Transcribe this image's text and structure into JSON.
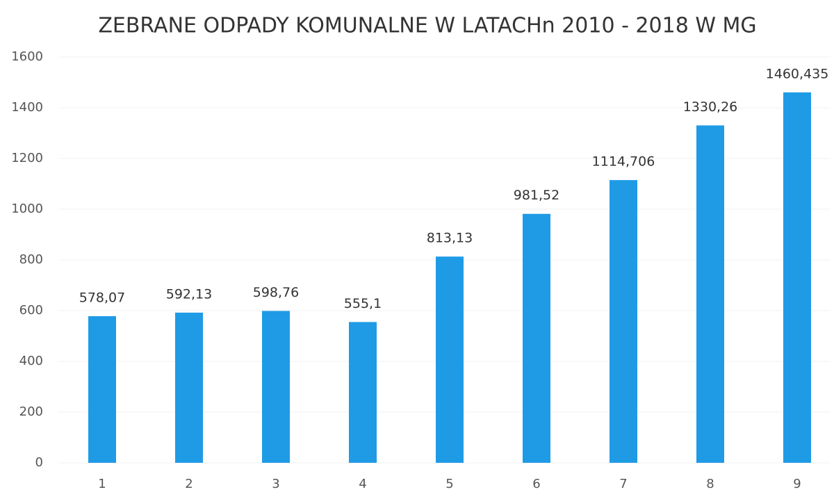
{
  "chart_data": {
    "type": "bar",
    "title": "ZEBRANE ODPADY KOMUNALNE W LATACHn 2010 - 2018 W MG",
    "categories": [
      "1",
      "2",
      "3",
      "4",
      "5",
      "6",
      "7",
      "8",
      "9"
    ],
    "values": [
      578.07,
      592.13,
      598.76,
      555.1,
      813.13,
      981.52,
      1114.706,
      1330.26,
      1460.435
    ],
    "value_labels": [
      "578,07",
      "592,13",
      "598,76",
      "555,1",
      "813,13",
      "981,52",
      "1114,706",
      "1330,26",
      "1460,435"
    ],
    "color": "#1f9be6",
    "ylim": [
      0,
      1600
    ],
    "yticks": [
      0,
      200,
      400,
      600,
      800,
      1000,
      1200,
      1400,
      1600
    ],
    "grid": true
  }
}
